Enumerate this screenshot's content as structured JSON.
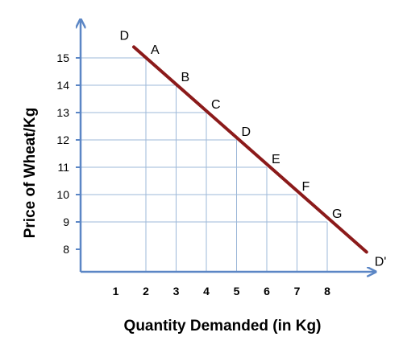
{
  "chart_data": {
    "type": "line",
    "title": "",
    "xlabel": "Quantity Demanded (in Kg)",
    "ylabel": "Price of Wheat/Kg",
    "x_ticks": [
      1,
      2,
      3,
      4,
      5,
      6,
      7,
      8
    ],
    "y_ticks": [
      8,
      9,
      10,
      11,
      12,
      13,
      14,
      15
    ],
    "xlim": [
      0,
      9.5
    ],
    "ylim": [
      7,
      16
    ],
    "grid": "dropped guide lines from each labeled point",
    "line_color": "#8b1a1a",
    "grid_color": "#9db8d8",
    "axis_color": "#5b86c5",
    "curve": {
      "start_label": "D",
      "end_label": "D'",
      "start": {
        "x": 1.6,
        "y": 15.4
      },
      "end": {
        "x": 9.3,
        "y": 7.9
      }
    },
    "points": [
      {
        "label": "A",
        "x": 2,
        "y": 15
      },
      {
        "label": "B",
        "x": 3,
        "y": 14
      },
      {
        "label": "C",
        "x": 4,
        "y": 13
      },
      {
        "label": "D",
        "x": 5,
        "y": 12
      },
      {
        "label": "E",
        "x": 6,
        "y": 11
      },
      {
        "label": "F",
        "x": 7,
        "y": 10
      },
      {
        "label": "G",
        "x": 8,
        "y": 9
      }
    ]
  }
}
